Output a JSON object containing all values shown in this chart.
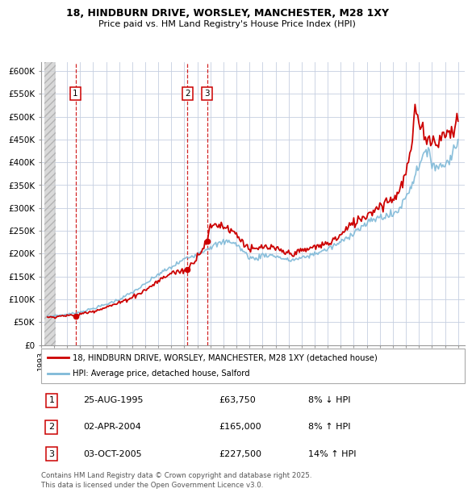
{
  "title1": "18, HINDBURN DRIVE, WORSLEY, MANCHESTER, M28 1XY",
  "title2": "Price paid vs. HM Land Registry's House Price Index (HPI)",
  "ylim": [
    0,
    620000
  ],
  "yticks": [
    0,
    50000,
    100000,
    150000,
    200000,
    250000,
    300000,
    350000,
    400000,
    450000,
    500000,
    550000,
    600000
  ],
  "ytick_labels": [
    "£0",
    "£50K",
    "£100K",
    "£150K",
    "£200K",
    "£250K",
    "£300K",
    "£350K",
    "£400K",
    "£450K",
    "£500K",
    "£550K",
    "£600K"
  ],
  "xlim_start": 1993.25,
  "xlim_end": 2025.5,
  "transactions": [
    {
      "num": 1,
      "date": "25-AUG-1995",
      "year": 1995.65,
      "price": 63750,
      "pct": "8%",
      "dir": "↓"
    },
    {
      "num": 2,
      "date": "02-APR-2004",
      "year": 2004.25,
      "price": 165000,
      "pct": "8%",
      "dir": "↑"
    },
    {
      "num": 3,
      "date": "03-OCT-2005",
      "year": 2005.75,
      "price": 227500,
      "pct": "14%",
      "dir": "↑"
    }
  ],
  "legend_line1": "18, HINDBURN DRIVE, WORSLEY, MANCHESTER, M28 1XY (detached house)",
  "legend_line2": "HPI: Average price, detached house, Salford",
  "footer": "Contains HM Land Registry data © Crown copyright and database right 2025.\nThis data is licensed under the Open Government Licence v3.0.",
  "property_color": "#cc0000",
  "hpi_color": "#7fb9d8",
  "grid_color": "#c5cfe0",
  "hatch_color": "#cccccc"
}
